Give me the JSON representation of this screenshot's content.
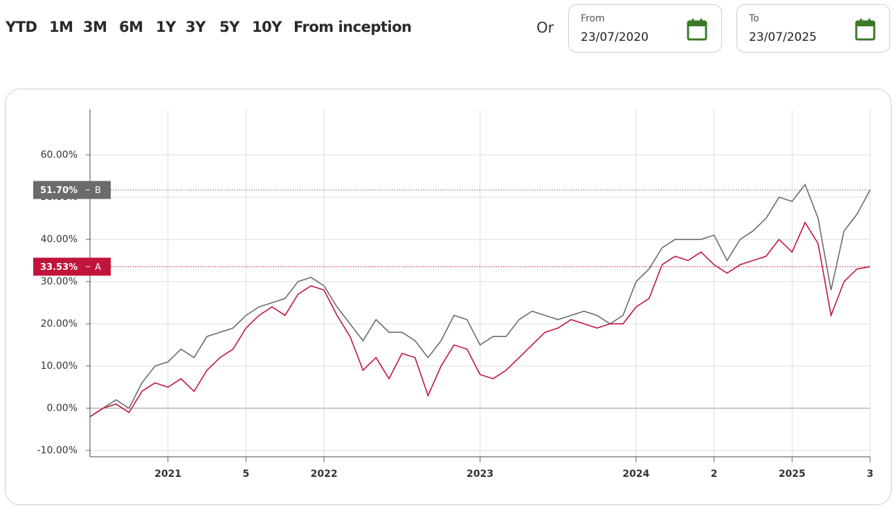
{
  "header": {
    "periods": [
      "YTD",
      "1M",
      "3M",
      "6M",
      "1Y",
      "3Y",
      "5Y",
      "10Y",
      "From inception"
    ],
    "or": "Or",
    "from": {
      "label": "From",
      "value": "23/07/2020"
    },
    "to": {
      "label": "To",
      "value": "23/07/2025"
    }
  },
  "chart_data": {
    "type": "line",
    "x": [
      "2020-07",
      "2020-08",
      "2020-09",
      "2020-10",
      "2020-11",
      "2020-12",
      "2021-01",
      "2021-02",
      "2021-03",
      "2021-04",
      "2021-05",
      "2021-06",
      "2021-07",
      "2021-08",
      "2021-09",
      "2021-10",
      "2021-11",
      "2021-12",
      "2022-01",
      "2022-02",
      "2022-03",
      "2022-04",
      "2022-05",
      "2022-06",
      "2022-07",
      "2022-08",
      "2022-09",
      "2022-10",
      "2022-11",
      "2022-12",
      "2023-01",
      "2023-02",
      "2023-03",
      "2023-04",
      "2023-05",
      "2023-06",
      "2023-07",
      "2023-08",
      "2023-09",
      "2023-10",
      "2023-11",
      "2023-12",
      "2024-01",
      "2024-02",
      "2024-03",
      "2024-04",
      "2024-05",
      "2024-06",
      "2024-07",
      "2024-08",
      "2024-09",
      "2024-10",
      "2024-11",
      "2024-12",
      "2025-01",
      "2025-02",
      "2025-03",
      "2025-04",
      "2025-05",
      "2025-06",
      "2025-07"
    ],
    "series": [
      {
        "name": "B",
        "color": "#6b6b6b",
        "flag_label": "51.70%",
        "values": [
          -2,
          0,
          2,
          0,
          6,
          10,
          11,
          14,
          12,
          17,
          18,
          19,
          22,
          24,
          25,
          26,
          30,
          31,
          29,
          24,
          20,
          16,
          21,
          18,
          18,
          16,
          12,
          16,
          22,
          21,
          15,
          17,
          17,
          21,
          23,
          22,
          21,
          22,
          23,
          22,
          20,
          22,
          30,
          33,
          38,
          40,
          40,
          40,
          41,
          35,
          40,
          42,
          45,
          50,
          49,
          53,
          45,
          28,
          42,
          46,
          51.7
        ]
      },
      {
        "name": "A",
        "color": "#c0143c",
        "flag_label": "33.53%",
        "values": [
          -2,
          0,
          1,
          -1,
          4,
          6,
          5,
          7,
          4,
          9,
          12,
          14,
          19,
          22,
          24,
          22,
          27,
          29,
          28,
          22,
          17,
          9,
          12,
          7,
          13,
          12,
          3,
          10,
          15,
          14,
          8,
          7,
          9,
          12,
          15,
          18,
          19,
          21,
          20,
          19,
          20,
          20,
          24,
          26,
          34,
          36,
          35,
          37,
          34,
          32,
          34,
          35,
          36,
          40,
          37,
          44,
          39,
          22,
          30,
          33,
          33.53
        ]
      }
    ],
    "xlim": [
      "2020-07",
      "2025-07"
    ],
    "xticks": [
      {
        "value": "2021-01",
        "label": "2021"
      },
      {
        "value": "2021-07",
        "label": "5"
      },
      {
        "value": "2022-01",
        "label": "2022"
      },
      {
        "value": "2023-01",
        "label": "2023"
      },
      {
        "value": "2024-01",
        "label": "2024"
      },
      {
        "value": "2024-07",
        "label": "2"
      },
      {
        "value": "2025-01",
        "label": "2025"
      },
      {
        "value": "2025-07",
        "label": "3"
      }
    ],
    "ylim": [
      -11.5,
      70.8
    ],
    "yticks": [
      {
        "value": -10,
        "label": "-10.00%"
      },
      {
        "value": 0,
        "label": "0.00%"
      },
      {
        "value": 10,
        "label": "10.00%"
      },
      {
        "value": 20,
        "label": "20.00%"
      },
      {
        "value": 30,
        "label": "30.00%"
      },
      {
        "value": 40,
        "label": "40.00%"
      },
      {
        "value": 50,
        "label": "50.00%"
      },
      {
        "value": 60,
        "label": "60.00%"
      }
    ],
    "grid": true
  }
}
